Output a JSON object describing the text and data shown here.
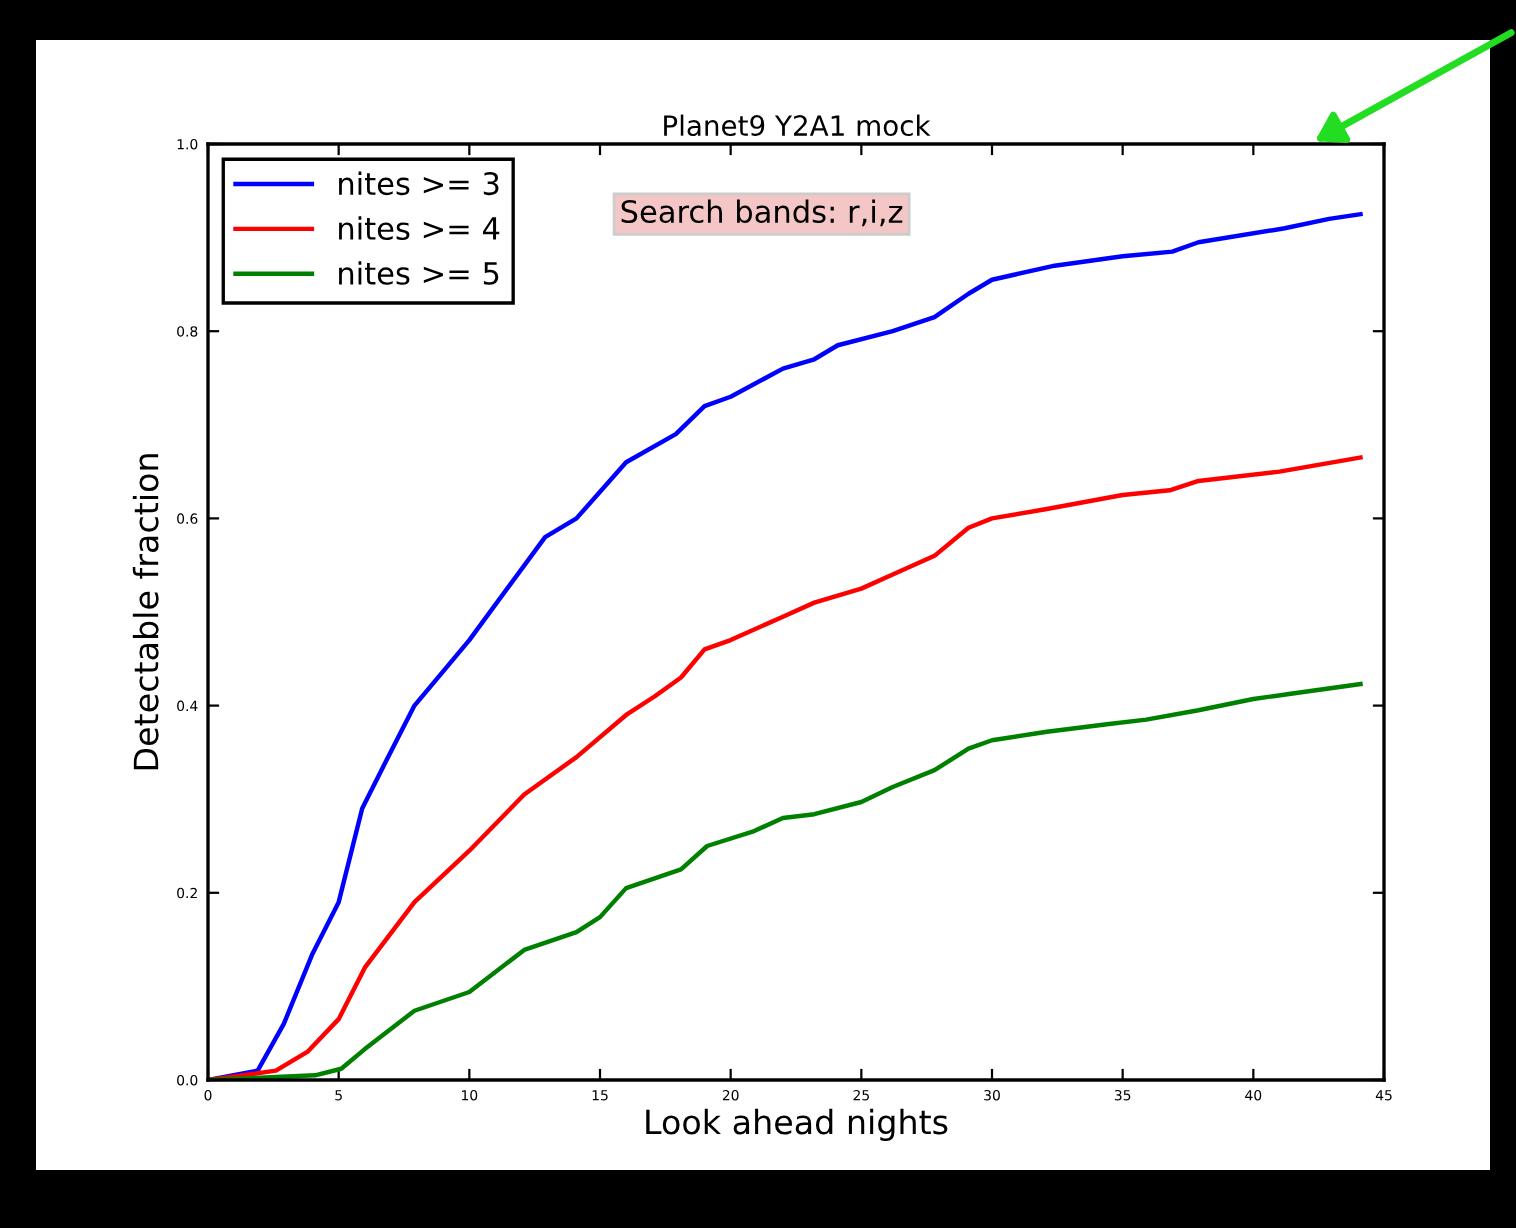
{
  "chart_data": {
    "type": "line",
    "title": "Planet9 Y2A1 mock",
    "xlabel": "Look ahead nights",
    "ylabel": "Detectable fraction",
    "annotations": [
      "Search bands: r,i,z"
    ],
    "xlim": [
      0,
      45
    ],
    "xticks": [
      0,
      5,
      10,
      15,
      20,
      25,
      30,
      35,
      40,
      45
    ],
    "ylim": [
      0.0,
      1.0
    ],
    "yticks": [
      {
        "value": 0.0,
        "label": "0.0"
      },
      {
        "value": 0.2,
        "label": "0.2"
      },
      {
        "value": 0.4,
        "label": "0.4"
      },
      {
        "value": 0.6,
        "label": "0.6"
      },
      {
        "value": 0.8,
        "label": "0.8"
      },
      {
        "value": 1.0,
        "label": "1.0"
      }
    ],
    "grid": false,
    "legend": "top left",
    "marker": "none",
    "line_style": "solid",
    "series": [
      {
        "name": "nites >= 3",
        "color": "#0000ff",
        "x": [
          0,
          1.9,
          2.9,
          4,
          5,
          5.9,
          6.8,
          7.9,
          10,
          12.9,
          14.1,
          16,
          17.9,
          19,
          20,
          22,
          23.2,
          24.1,
          26.2,
          27.8,
          29.1,
          30,
          32.4,
          35,
          36.9,
          37.9,
          41.2,
          42.9,
          44.1
        ],
        "values": [
          0.0,
          0.01,
          0.06,
          0.135,
          0.19,
          0.29,
          0.34,
          0.4,
          0.47,
          0.58,
          0.6,
          0.66,
          0.69,
          0.72,
          0.73,
          0.76,
          0.77,
          0.785,
          0.8,
          0.815,
          0.84,
          0.855,
          0.87,
          0.88,
          0.885,
          0.895,
          0.91,
          0.92,
          0.925
        ]
      },
      {
        "name": "nites >= 4",
        "color": "#ff0000",
        "x": [
          0,
          2.6,
          3.8,
          5,
          6,
          7.9,
          10,
          12.1,
          14.1,
          16,
          17.1,
          18.1,
          19,
          20,
          22,
          23.2,
          25,
          26.2,
          27.8,
          29.1,
          30,
          32.1,
          35,
          36.8,
          37.9,
          41,
          44.1
        ],
        "values": [
          0.0,
          0.01,
          0.03,
          0.065,
          0.12,
          0.19,
          0.245,
          0.305,
          0.345,
          0.39,
          0.41,
          0.43,
          0.46,
          0.47,
          0.495,
          0.51,
          0.525,
          0.54,
          0.56,
          0.59,
          0.6,
          0.61,
          0.625,
          0.63,
          0.64,
          0.65,
          0.665
        ]
      },
      {
        "name": "nites >= 5",
        "color": "#008000",
        "x": [
          0,
          4.1,
          5.1,
          6,
          7.9,
          10,
          12.1,
          14.1,
          15,
          16,
          18.1,
          19.1,
          20.9,
          22,
          23.2,
          25,
          26.2,
          27.8,
          29.1,
          30,
          32.1,
          34.4,
          35.9,
          37.9,
          40,
          41.5,
          44.1
        ],
        "values": [
          0.0,
          0.005,
          0.012,
          0.033,
          0.074,
          0.094,
          0.139,
          0.158,
          0.174,
          0.205,
          0.225,
          0.25,
          0.266,
          0.28,
          0.284,
          0.297,
          0.313,
          0.331,
          0.354,
          0.363,
          0.372,
          0.38,
          0.385,
          0.395,
          0.407,
          0.413,
          0.423
        ]
      }
    ]
  }
}
